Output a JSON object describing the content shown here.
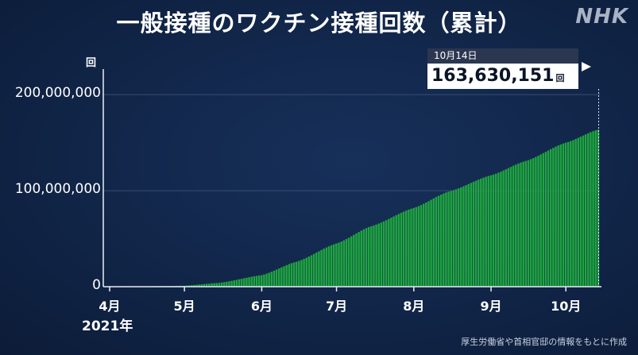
{
  "title": "一般接種のワクチン接種回数（累計）",
  "brand": "NHK",
  "source_note": "厚生労働省や首相官邸の情報をもとに作成",
  "callout": {
    "date": "10月14日",
    "value": "163,630,151",
    "unit": "回"
  },
  "chart_data": {
    "type": "bar",
    "title": "一般接種のワクチン接種回数（累計）",
    "ylabel": "回",
    "xlabel": "",
    "year_label": "2021年",
    "ylim": [
      0,
      220000000
    ],
    "grid": true,
    "y_ticks": [
      {
        "value": 0,
        "label": "0"
      },
      {
        "value": 100000000,
        "label": "100,000,000"
      },
      {
        "value": 200000000,
        "label": "200,000,000"
      }
    ],
    "x_ticks": [
      {
        "date": "2021-04-01",
        "label": "4月"
      },
      {
        "date": "2021-05-01",
        "label": "5月"
      },
      {
        "date": "2021-06-01",
        "label": "6月"
      },
      {
        "date": "2021-07-01",
        "label": "7月"
      },
      {
        "date": "2021-08-01",
        "label": "8月"
      },
      {
        "date": "2021-09-01",
        "label": "9月"
      },
      {
        "date": "2021-10-01",
        "label": "10月"
      }
    ],
    "x_range": [
      "2021-04-01",
      "2021-10-14"
    ],
    "bar_color": "#1fa53f",
    "series": [
      {
        "x": [
          "2021-04-01",
          "2021-04-15",
          "2021-05-01",
          "2021-05-15",
          "2021-06-01",
          "2021-06-15",
          "2021-07-01",
          "2021-07-15",
          "2021-08-01",
          "2021-08-15",
          "2021-09-01",
          "2021-09-15",
          "2021-10-01",
          "2021-10-14"
        ],
        "values": [
          0,
          300000,
          1000000,
          4000000,
          12000000,
          26000000,
          45000000,
          63000000,
          82000000,
          99000000,
          116000000,
          131000000,
          150000000,
          163630151
        ]
      }
    ]
  }
}
